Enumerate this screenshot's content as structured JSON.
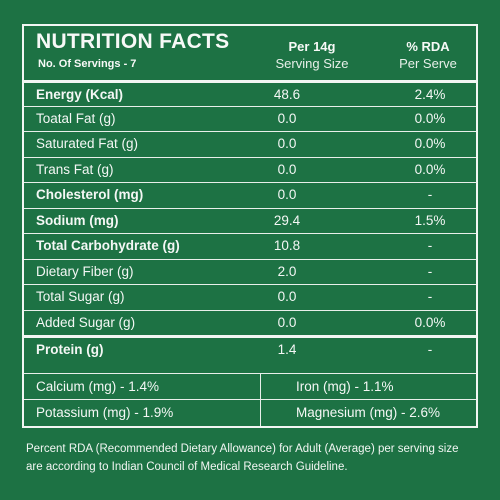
{
  "header": {
    "title": "NUTRITION FACTS",
    "servings": "No. Of Servings - 7",
    "col_per_line1": "Per 14g",
    "col_per_line2": "Serving Size",
    "col_rda_line1": "% RDA",
    "col_rda_line2": "Per Serve"
  },
  "rows": [
    {
      "name": "Energy (Kcal)",
      "per": "48.6",
      "rda": "2.4%"
    },
    {
      "name": "Toatal Fat (g)",
      "per": "0.0",
      "rda": "0.0%"
    },
    {
      "name": "Saturated Fat (g)",
      "per": "0.0",
      "rda": "0.0%"
    },
    {
      "name": "Trans Fat (g)",
      "per": "0.0",
      "rda": "0.0%"
    },
    {
      "name": "Cholesterol (mg)",
      "per": "0.0",
      "rda": "-"
    },
    {
      "name": "Sodium (mg)",
      "per": "29.4",
      "rda": "1.5%"
    },
    {
      "name": "Total Carbohydrate (g)",
      "per": "10.8",
      "rda": "-"
    },
    {
      "name": "Dietary Fiber (g)",
      "per": "2.0",
      "rda": "-"
    },
    {
      "name": "Total Sugar (g)",
      "per": "0.0",
      "rda": "-"
    },
    {
      "name": "Added Sugar (g)",
      "per": "0.0",
      "rda": "0.0%"
    },
    {
      "name": "Protein (g)",
      "per": "1.4",
      "rda": "-"
    }
  ],
  "minerals": {
    "calcium": "Calcium (mg) - 1.4%",
    "iron": "Iron (mg) - 1.1%",
    "potassium": "Potassium (mg) - 1.9%",
    "magnesium": "Magnesium (mg) - 2.6%"
  },
  "footnote": "Percent RDA (Recommended Dietary Allowance) for Adult (Average) per serving size are according to Indian Council of Medical Research Guideline.",
  "colors": {
    "background": "#1d7244",
    "text": "#f7f9f7",
    "lines": "#e8efea"
  }
}
